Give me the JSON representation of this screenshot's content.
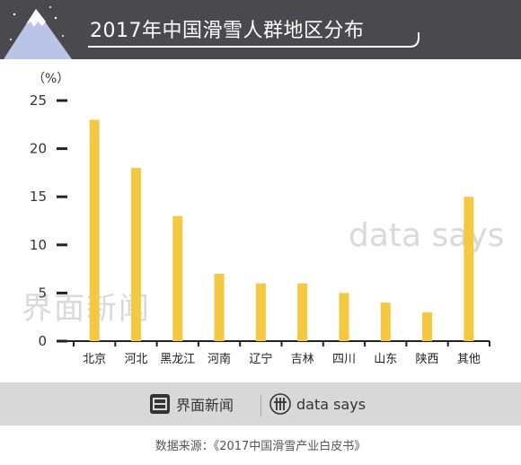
{
  "header": {
    "title": "2017年中国滑雪人群地区分布"
  },
  "chart_data": {
    "type": "bar",
    "title": "2017年中国滑雪人群地区分布",
    "unit": "（%）",
    "categories": [
      "北京",
      "河北",
      "黑龙江",
      "河南",
      "辽宁",
      "吉林",
      "四川",
      "山东",
      "陕西",
      "其他"
    ],
    "values": [
      23,
      18,
      13,
      7,
      6,
      6,
      5,
      4,
      3,
      15
    ],
    "yticks": [
      "0",
      "5",
      "10",
      "15",
      "20",
      "25"
    ],
    "ylim": [
      0,
      25
    ],
    "grid": false,
    "bar_color": "#f5c842"
  },
  "watermarks": {
    "jiemian": "界面新闻",
    "datasays": "data says"
  },
  "footer": {
    "jiemian_label": "界面新闻",
    "datasays_label": "data says",
    "source": "数据来源：《2017中国滑雪产业白皮书》"
  },
  "colors": {
    "header_bg": "#4a4a4e",
    "footer_band": "#d8d8d8",
    "bar": "#f5c842",
    "axis": "#222222"
  }
}
